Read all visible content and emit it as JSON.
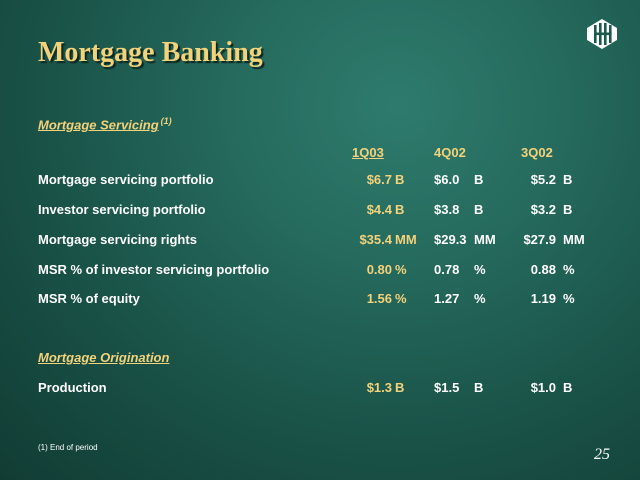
{
  "slide": {
    "title": "Mortgage Banking",
    "page_number": "25",
    "footnote": "(1) End of period"
  },
  "logo": {
    "icon": "bank-monogram-icon",
    "color": "#ffffff"
  },
  "colors": {
    "accent": "#f2d27a",
    "text": "#ffffff",
    "background": "#236457"
  },
  "servicing": {
    "heading": "Mortgage Servicing",
    "heading_note": "(1)",
    "columns": [
      "1Q03",
      "4Q02",
      "3Q02"
    ],
    "rows": [
      {
        "label": "Mortgage servicing portfolio",
        "values": [
          {
            "num": "$6.7",
            "unit": "B"
          },
          {
            "num": "$6.0",
            "unit": "B"
          },
          {
            "num": "$5.2",
            "unit": "B"
          }
        ]
      },
      {
        "label": "Investor servicing portfolio",
        "values": [
          {
            "num": "$4.4",
            "unit": "B"
          },
          {
            "num": "$3.8",
            "unit": "B"
          },
          {
            "num": "$3.2",
            "unit": "B"
          }
        ]
      },
      {
        "label": "Mortgage servicing rights",
        "values": [
          {
            "num": "$35.4",
            "unit": "MM"
          },
          {
            "num": "$29.3",
            "unit": "MM"
          },
          {
            "num": "$27.9",
            "unit": "MM"
          }
        ]
      },
      {
        "label": "MSR % of investor servicing portfolio",
        "values": [
          {
            "num": "0.80",
            "unit": "%"
          },
          {
            "num": "0.78",
            "unit": "%"
          },
          {
            "num": "0.88",
            "unit": "%"
          }
        ]
      },
      {
        "label": "MSR % of equity",
        "values": [
          {
            "num": "1.56",
            "unit": "%"
          },
          {
            "num": "1.27",
            "unit": "%"
          },
          {
            "num": "1.19",
            "unit": "%"
          }
        ]
      }
    ]
  },
  "origination": {
    "heading": "Mortgage Origination",
    "rows": [
      {
        "label": "Production",
        "values": [
          {
            "num": "$1.3",
            "unit": "B"
          },
          {
            "num": "$1.5",
            "unit": "B"
          },
          {
            "num": "$1.0",
            "unit": "B"
          }
        ]
      }
    ]
  }
}
